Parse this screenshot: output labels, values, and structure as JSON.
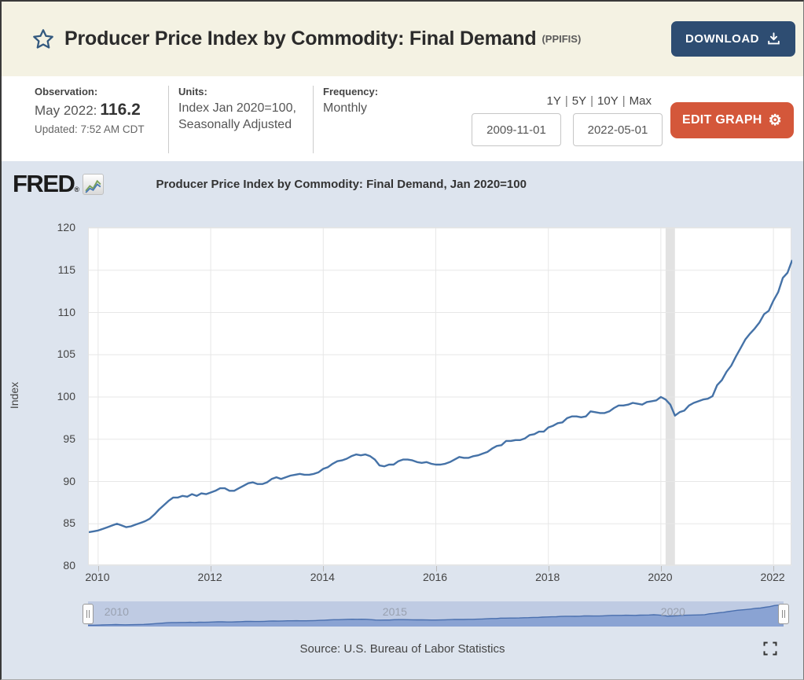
{
  "header": {
    "title": "Producer Price Index by Commodity: Final Demand",
    "series_id": "(PPIFIS)",
    "download_label": "DOWNLOAD"
  },
  "info": {
    "observation": {
      "label": "Observation:",
      "date": "May 2022:",
      "value": "116.2",
      "updated": "Updated: 7:52 AM CDT"
    },
    "units": {
      "label": "Units:",
      "line1": "Index Jan 2020=100,",
      "line2": "Seasonally Adjusted"
    },
    "frequency": {
      "label": "Frequency:",
      "value": "Monthly"
    },
    "ranges": [
      "1Y",
      "5Y",
      "10Y",
      "Max"
    ],
    "range_separator": "|",
    "date_start": "2009-11-01",
    "date_end": "2022-05-01",
    "edit_graph_label": "EDIT GRAPH"
  },
  "graph": {
    "logo": "FRED",
    "logo_reg": "®",
    "legend": "Producer Price Index by Commodity: Final Demand, Jan 2020=100",
    "ylabel": "Index",
    "source": "Source: U.S. Bureau of Labor Statistics",
    "slider_labels": [
      "2010",
      "2015",
      "2020"
    ]
  },
  "colors": {
    "header_bg": "#f4f2e3",
    "download_btn": "#2e4d72",
    "edit_graph_btn": "#d4573a",
    "graph_bg": "#dde4ee",
    "line": "#4572a7",
    "grid": "#e7e7e7",
    "recession_band": "#e2e2e2",
    "slider_track": "#bfcbe3",
    "slider_fill": "#8aa3d3",
    "slider_stroke": "#4a6fae"
  },
  "chart_data": {
    "type": "line",
    "title": "Producer Price Index by Commodity: Final Demand, Jan 2020=100",
    "xlabel": "",
    "ylabel": "Index",
    "ylim": [
      80,
      120
    ],
    "yticks": [
      80,
      85,
      90,
      95,
      100,
      105,
      110,
      115,
      120
    ],
    "xticks": [
      "2010",
      "2012",
      "2014",
      "2016",
      "2018",
      "2020",
      "2022"
    ],
    "x_start": "2009-11",
    "x_end": "2022-05",
    "frequency": "monthly",
    "grid": true,
    "legend_position": "top",
    "recession_band": {
      "from": "2020-02",
      "to": "2020-04"
    },
    "values": [
      84.0,
      84.1,
      84.2,
      84.4,
      84.6,
      84.8,
      85.0,
      84.8,
      84.6,
      84.7,
      84.9,
      85.1,
      85.3,
      85.6,
      86.1,
      86.7,
      87.2,
      87.7,
      88.1,
      88.1,
      88.3,
      88.2,
      88.5,
      88.3,
      88.6,
      88.5,
      88.7,
      88.9,
      89.2,
      89.2,
      88.9,
      88.9,
      89.2,
      89.5,
      89.8,
      89.9,
      89.7,
      89.7,
      89.9,
      90.3,
      90.5,
      90.3,
      90.5,
      90.7,
      90.8,
      90.9,
      90.8,
      90.8,
      90.9,
      91.1,
      91.5,
      91.7,
      92.1,
      92.4,
      92.5,
      92.7,
      93.0,
      93.2,
      93.1,
      93.2,
      93.0,
      92.6,
      91.9,
      91.8,
      92.0,
      92.0,
      92.4,
      92.6,
      92.6,
      92.5,
      92.3,
      92.2,
      92.3,
      92.1,
      92.0,
      92.0,
      92.1,
      92.3,
      92.6,
      92.9,
      92.8,
      92.8,
      93.0,
      93.1,
      93.3,
      93.5,
      93.9,
      94.2,
      94.3,
      94.8,
      94.8,
      94.9,
      94.9,
      95.1,
      95.5,
      95.6,
      95.9,
      95.9,
      96.4,
      96.6,
      96.9,
      97.0,
      97.5,
      97.7,
      97.7,
      97.6,
      97.7,
      98.3,
      98.2,
      98.1,
      98.1,
      98.3,
      98.7,
      99.0,
      99.0,
      99.1,
      99.3,
      99.2,
      99.1,
      99.4,
      99.5,
      99.6,
      100.0,
      99.7,
      99.1,
      97.8,
      98.2,
      98.4,
      99.0,
      99.3,
      99.5,
      99.7,
      99.8,
      100.1,
      101.4,
      102.0,
      103.0,
      103.7,
      104.8,
      105.8,
      106.8,
      107.5,
      108.1,
      108.8,
      109.8,
      110.2,
      111.4,
      112.4,
      114.1,
      114.7,
      116.2
    ]
  }
}
